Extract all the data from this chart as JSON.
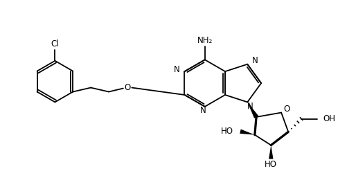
{
  "bg_color": "#ffffff",
  "line_color": "#000000",
  "lw": 1.3,
  "fs": 8.5,
  "fig_w": 5.02,
  "fig_h": 2.7,
  "dpi": 100,
  "xlim": [
    0,
    10
  ],
  "ylim": [
    0,
    5.4
  ]
}
